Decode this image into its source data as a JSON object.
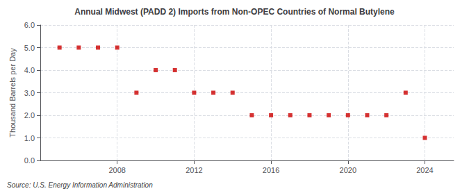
{
  "chart_data": {
    "type": "scatter",
    "title": "Annual Midwest (PADD 2) Imports from Non-OPEC Countries of Normal Butylene",
    "ylabel": "Thousand Barrels per Day",
    "annotations": [
      "Source: U.S. Energy Information Administration"
    ],
    "x": [
      2005,
      2006,
      2007,
      2008,
      2009,
      2010,
      2011,
      2012,
      2013,
      2014,
      2015,
      2016,
      2017,
      2018,
      2019,
      2020,
      2021,
      2022,
      2023,
      2024
    ],
    "values": [
      5.0,
      5.0,
      5.0,
      5.0,
      3.0,
      4.0,
      4.0,
      3.0,
      3.0,
      3.0,
      2.0,
      2.0,
      2.0,
      2.0,
      2.0,
      2.0,
      2.0,
      2.0,
      3.0,
      1.0
    ],
    "color": "#cc0000",
    "marker": "square",
    "xlim": [
      2004.0,
      2025.5
    ],
    "ylim": [
      0.0,
      6.0
    ],
    "xticks": [
      2008,
      2012,
      2016,
      2020,
      2024
    ],
    "yticks": [
      {
        "value": 0,
        "label": "0.0"
      },
      {
        "value": 1,
        "label": "1.0"
      },
      {
        "value": 2,
        "label": "2.0"
      },
      {
        "value": 3,
        "label": "3.0"
      },
      {
        "value": 4,
        "label": "4.0"
      },
      {
        "value": 5,
        "label": "5.0"
      },
      {
        "value": 6,
        "label": "6.0"
      }
    ],
    "grid": true
  }
}
